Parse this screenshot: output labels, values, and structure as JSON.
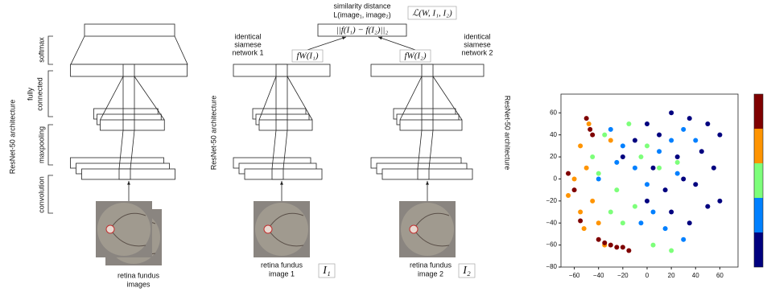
{
  "diagram": {
    "left_labels": {
      "softmax": "softmax",
      "fully_connected": [
        "fully",
        "connected"
      ],
      "maxpooling": "maxpooling",
      "convolution": "convolution",
      "architecture": "ResNet-50 architecture",
      "images": [
        "retina fundus",
        "images"
      ]
    },
    "similarity": {
      "caption": [
        "similarity distance",
        "L(image₁, image₂)"
      ],
      "loss": "ℒ(W, I₁, I₂)",
      "distance": "||f(I₁) − f(I₂)||₂"
    },
    "network_1": {
      "label": [
        "identical",
        "siamese",
        "network 1"
      ],
      "output": "fW(I₁)",
      "image_label": [
        "retina fundus",
        "image 1"
      ],
      "image_symbol": "I₁",
      "architecture": "ResNet-50 architecture"
    },
    "network_2": {
      "label": [
        "identical",
        "siamese",
        "network 2"
      ],
      "output": "fW(I₂)",
      "image_label": [
        "retina fundus",
        "image 2"
      ],
      "image_symbol": "I₂",
      "architecture": "ResNet-50 architecture"
    }
  },
  "chart_data": {
    "type": "scatter",
    "xlim": [
      -71,
      75
    ],
    "ylim": [
      -80,
      77
    ],
    "xticks": [
      {
        "value": -60,
        "label": "−60"
      },
      {
        "value": -40,
        "label": "−40"
      },
      {
        "value": -20,
        "label": "−20"
      },
      0,
      20,
      40,
      60
    ],
    "yticks": [
      {
        "value": -80,
        "label": "−80"
      },
      {
        "value": -60,
        "label": "−60"
      },
      {
        "value": -40,
        "label": "−40"
      },
      {
        "value": -20,
        "label": "−20"
      },
      0,
      20,
      40,
      60
    ],
    "colorbar": [
      "#00007f",
      "#0080ff",
      "#7dff7a",
      "#ff9400",
      "#7f0000"
    ],
    "series": [
      {
        "color": "#00007f",
        "x": [
          20,
          35,
          50,
          60,
          10,
          0,
          -10,
          25,
          45,
          55,
          30,
          15,
          40,
          5,
          -20,
          60,
          50,
          35,
          20,
          0
        ],
        "values": [
          60,
          55,
          50,
          40,
          40,
          50,
          35,
          20,
          25,
          10,
          0,
          -10,
          -5,
          10,
          20,
          -20,
          -25,
          -40,
          -30,
          -20
        ]
      },
      {
        "color": "#0080ff",
        "x": [
          -30,
          -20,
          -10,
          0,
          10,
          20,
          30,
          -40,
          15,
          5,
          -5,
          25,
          40,
          -25,
          30
        ],
        "values": [
          45,
          30,
          10,
          -5,
          25,
          35,
          45,
          0,
          -45,
          -30,
          -40,
          5,
          35,
          15,
          -55
        ]
      },
      {
        "color": "#7dff7a",
        "x": [
          -45,
          -35,
          -25,
          -15,
          -5,
          10,
          -30,
          -20,
          -10,
          0,
          20,
          -40,
          5,
          25
        ],
        "values": [
          20,
          40,
          -10,
          50,
          20,
          10,
          -30,
          -40,
          -25,
          30,
          -65,
          5,
          -60,
          15
        ]
      },
      {
        "color": "#ff9400",
        "x": [
          -55,
          -50,
          -45,
          -55,
          -60,
          -48,
          -40,
          -52,
          -65,
          -35,
          -30
        ],
        "values": [
          30,
          10,
          -20,
          -30,
          0,
          50,
          -40,
          -45,
          -15,
          -60,
          35
        ]
      },
      {
        "color": "#7f0000",
        "x": [
          -50,
          -47,
          -40,
          -35,
          -30,
          -25,
          -20,
          -15,
          -55,
          -60,
          -65,
          -45
        ],
        "values": [
          55,
          45,
          -55,
          -58,
          -60,
          -62,
          -62,
          -65,
          -38,
          -10,
          5,
          40
        ]
      }
    ]
  }
}
